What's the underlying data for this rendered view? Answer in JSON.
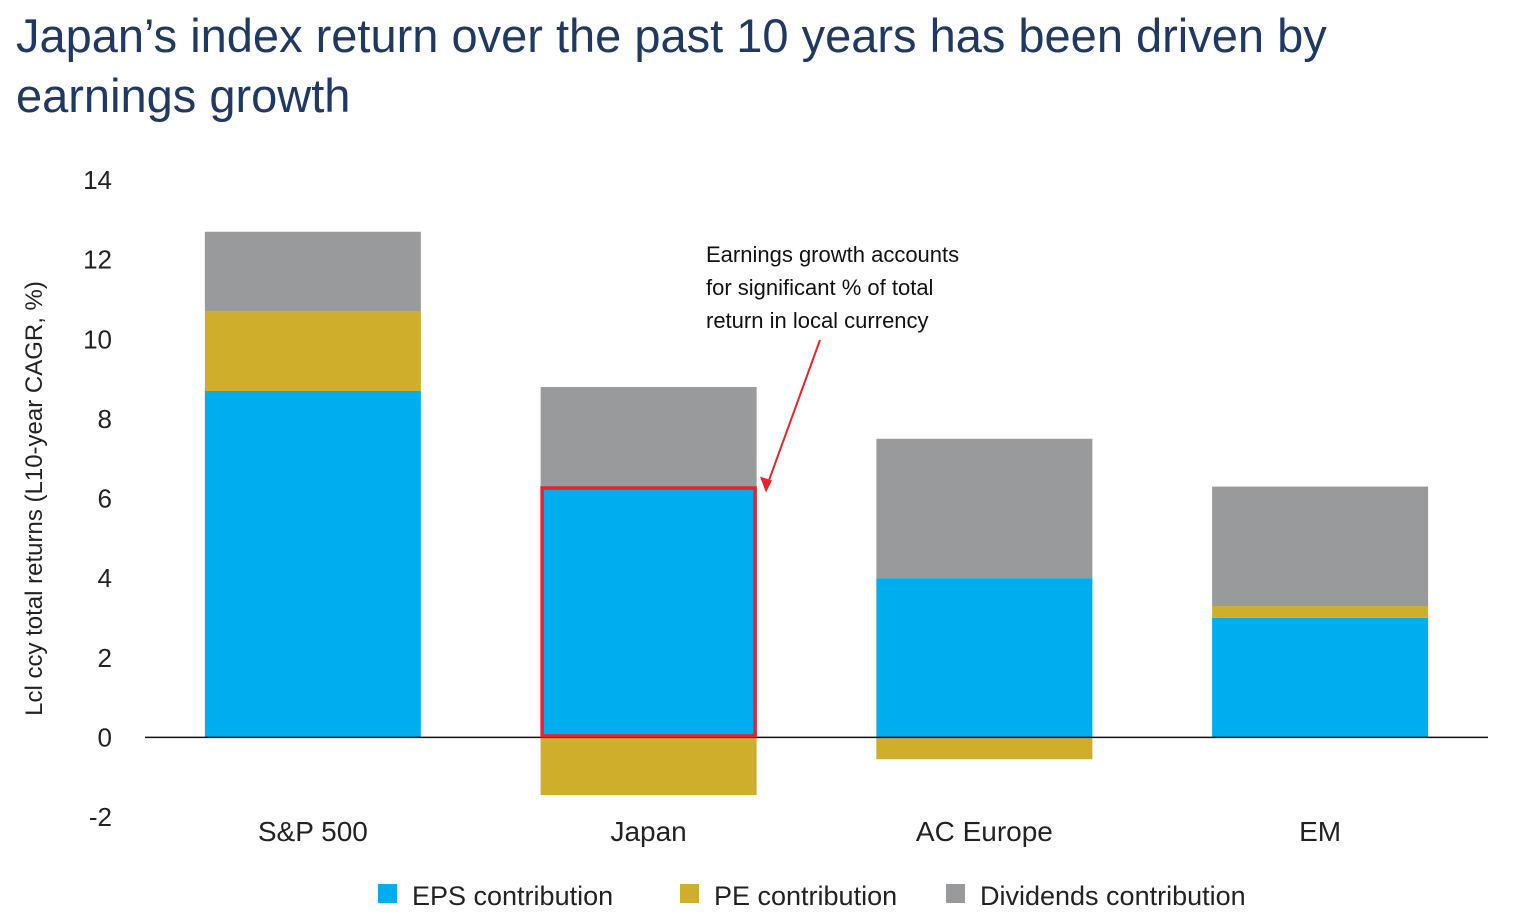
{
  "chart_data": {
    "type": "bar",
    "stacked": true,
    "title": "Japan’s index return over the past 10 years has been driven by earnings growth",
    "ylabel": "Lcl ccy total returns (L10-year CAGR, %)",
    "xlabel": "",
    "ylim": [
      -2,
      14
    ],
    "yticks": [
      -2,
      0,
      2,
      4,
      6,
      8,
      10,
      12,
      14
    ],
    "categories": [
      "S&P 500",
      "Japan",
      "AC Europe",
      "EM"
    ],
    "series": [
      {
        "name": "EPS contribution",
        "color": "#00aeef",
        "values": [
          8.7,
          6.3,
          4.0,
          3.0
        ]
      },
      {
        "name": "PE contribution",
        "color": "#cfae2b",
        "values": [
          2.0,
          -1.45,
          -0.55,
          0.3
        ]
      },
      {
        "name": "Dividends contribution",
        "color": "#999a9c",
        "values": [
          2.0,
          2.5,
          3.5,
          3.0
        ]
      }
    ],
    "legend_position": "bottom",
    "annotation": {
      "lines": [
        "Earnings growth accounts",
        "for significant % of total",
        "return in local currency"
      ],
      "highlight_category": "Japan",
      "highlight_series": "EPS contribution",
      "highlight_color": "#e8232a"
    }
  }
}
